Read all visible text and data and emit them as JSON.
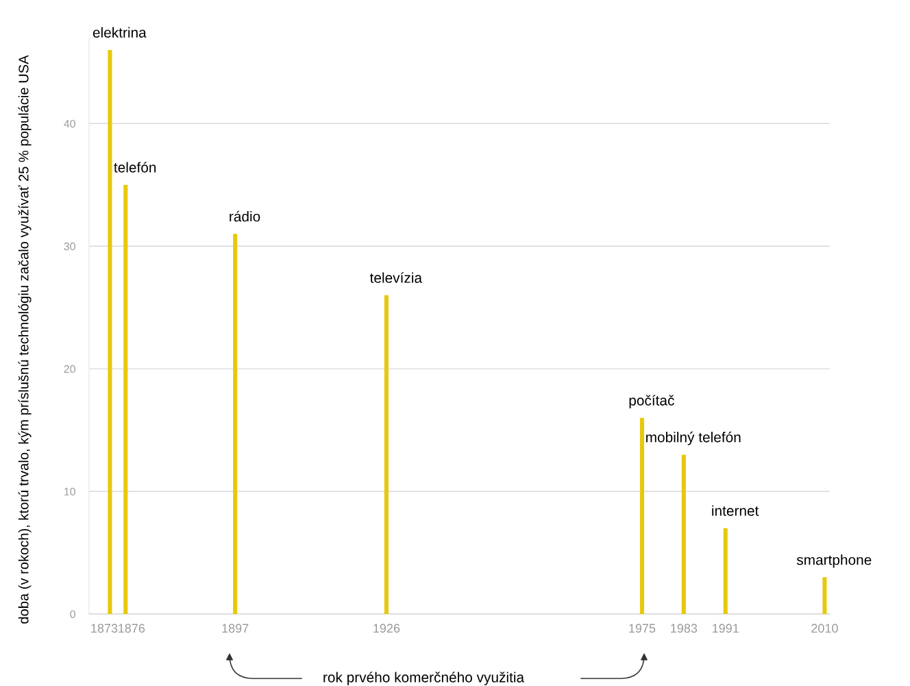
{
  "chart_data": {
    "type": "bar",
    "xlabel": "rok prvého komerčného využitia",
    "ylabel": "doba (v rokoch), ktorú trvalo, kým príslušnú technológiu začalo využívať 25 % populácie USA",
    "x": [
      1873,
      1876,
      1897,
      1926,
      1975,
      1983,
      1991,
      2010
    ],
    "values": [
      46,
      35,
      31,
      26,
      16,
      13,
      7,
      3
    ],
    "color": "#e8c80c",
    "xlim": [
      1869,
      2011
    ],
    "ylim": [
      0,
      47
    ],
    "xticks": [
      1873,
      1876,
      1897,
      1926,
      1975,
      1983,
      1991,
      2010
    ],
    "yticks": [
      0,
      10,
      20,
      30,
      40
    ],
    "grid": "y",
    "value_labels": [
      "elektrina",
      "telefón",
      "rádio",
      "televízia",
      "počítač",
      "mobilný telefón",
      "internet",
      "smartphone"
    ]
  }
}
